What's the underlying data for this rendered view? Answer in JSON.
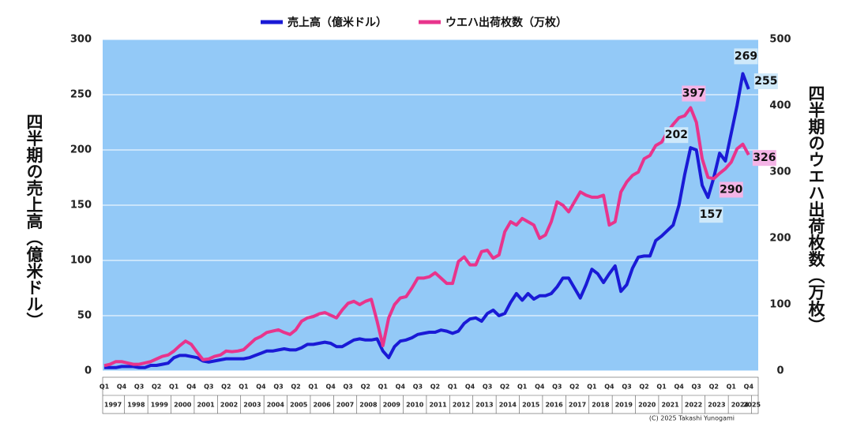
{
  "chart_data": {
    "type": "line",
    "categories": [
      "Q1",
      null,
      null,
      "Q4",
      null,
      null,
      "Q3",
      null,
      null,
      "Q2",
      null,
      null,
      "Q1",
      null,
      null,
      "Q4",
      null,
      null,
      "Q3",
      null,
      null,
      "Q2",
      null,
      null,
      "Q1",
      null,
      null,
      "Q4",
      null,
      null,
      "Q3",
      null,
      null,
      "Q2",
      null,
      null,
      "Q1",
      null,
      null,
      "Q4",
      null,
      null,
      "Q3",
      null,
      null,
      "Q2",
      null,
      null,
      "Q1",
      null,
      null,
      "Q4",
      null,
      null,
      "Q3",
      null,
      null,
      "Q2",
      null,
      null,
      "Q1",
      null,
      null,
      "Q4",
      null,
      null,
      "Q3",
      null,
      null,
      "Q2",
      null,
      null,
      "Q1",
      null,
      null,
      "Q4",
      null,
      null,
      "Q3",
      null,
      null,
      "Q2",
      null,
      null,
      "Q1",
      null,
      null,
      "Q4",
      null,
      null,
      "Q3",
      null,
      null,
      "Q2",
      null,
      null,
      "Q1",
      null,
      null,
      "Q4",
      null,
      null,
      "Q3",
      null,
      null,
      "Q2",
      null,
      null,
      "Q1",
      null,
      null,
      "Q4"
    ],
    "years": [
      "1997",
      "1998",
      "1999",
      "2000",
      "2001",
      "2002",
      "2003",
      "2004",
      "2005",
      "2006",
      "2007",
      "2008",
      "2009",
      "2010",
      "2011",
      "2012",
      "2013",
      "2014",
      "2015",
      "2016",
      "2017",
      "2018",
      "2019",
      "2020",
      "2021",
      "2022",
      "2023",
      "2024",
      "2025"
    ],
    "ylabel": "四半期の売上高（億米ドル）",
    "y2label": "四半期のウエハ出荷枚数（万枚）",
    "credit": "(C) 2025 Takashi Yunogami",
    "ylim": [
      0,
      300
    ],
    "yticks": [
      0,
      50,
      100,
      150,
      200,
      250,
      300
    ],
    "y2lim": [
      0,
      500
    ],
    "y2ticks": [
      0,
      100,
      200,
      300,
      400,
      500
    ],
    "grid": true,
    "legend": "top",
    "series": [
      {
        "name": "売上高（億米ドル）",
        "color": "#1a1ad6",
        "values": [
          3,
          3,
          3,
          4,
          4,
          4,
          3,
          3,
          5,
          5,
          6,
          7,
          12,
          14,
          14,
          13,
          12,
          9,
          8,
          9,
          10,
          11,
          11,
          11,
          11,
          12,
          14,
          16,
          18,
          18,
          19,
          20,
          19,
          19,
          21,
          24,
          24,
          25,
          26,
          25,
          22,
          22,
          25,
          28,
          29,
          28,
          28,
          29,
          18,
          12,
          22,
          27,
          28,
          30,
          33,
          34,
          35,
          35,
          37,
          36,
          34,
          36,
          43,
          47,
          48,
          45,
          52,
          55,
          50,
          52,
          62,
          70,
          64,
          70,
          65,
          68,
          68,
          70,
          76,
          84,
          84,
          75,
          66,
          78,
          92,
          88,
          80,
          88,
          95,
          72,
          78,
          93,
          103,
          104,
          104,
          118,
          122,
          127,
          132,
          150,
          178,
          202,
          200,
          168,
          157,
          175,
          197,
          190,
          215,
          240,
          269,
          255
        ],
        "value_labels": [
          null,
          null,
          null,
          null,
          null,
          null,
          null,
          null,
          null,
          null,
          null,
          null,
          null,
          null,
          null,
          null,
          null,
          null,
          null,
          null,
          null,
          null,
          null,
          null,
          null,
          null,
          null,
          null,
          null,
          null,
          null,
          null,
          null,
          null,
          null,
          null,
          null,
          null,
          null,
          null,
          null,
          null,
          null,
          null,
          null,
          null,
          null,
          null,
          null,
          null,
          null,
          null,
          null,
          null,
          null,
          null,
          null,
          null,
          null,
          null,
          null,
          null,
          null,
          null,
          null,
          null,
          null,
          null,
          null,
          null,
          null,
          null,
          null,
          null,
          null,
          null,
          null,
          null,
          null,
          null,
          null,
          null,
          null,
          null,
          null,
          null,
          null,
          null,
          null,
          null,
          null,
          null,
          null,
          null,
          null,
          null,
          null,
          null,
          null,
          null,
          null,
          "202",
          null,
          null,
          "157",
          null,
          null,
          null,
          null,
          null,
          "269",
          "255"
        ]
      },
      {
        "name": "ウエハ出荷枚数（万枚）",
        "color": "#e8348c",
        "axis": "y2",
        "values": [
          8,
          10,
          14,
          14,
          12,
          10,
          10,
          12,
          14,
          18,
          22,
          24,
          30,
          38,
          45,
          40,
          28,
          17,
          18,
          22,
          24,
          30,
          29,
          30,
          32,
          40,
          48,
          52,
          58,
          60,
          62,
          58,
          55,
          62,
          75,
          80,
          82,
          86,
          88,
          84,
          80,
          92,
          102,
          105,
          100,
          105,
          108,
          75,
          38,
          80,
          100,
          110,
          112,
          125,
          140,
          140,
          142,
          148,
          140,
          132,
          132,
          165,
          172,
          160,
          160,
          180,
          182,
          170,
          175,
          210,
          225,
          220,
          230,
          225,
          220,
          200,
          205,
          225,
          255,
          250,
          240,
          255,
          270,
          265,
          262,
          262,
          265,
          220,
          225,
          270,
          285,
          295,
          300,
          320,
          325,
          340,
          345,
          360,
          372,
          382,
          385,
          397,
          375,
          320,
          292,
          290,
          298,
          305,
          315,
          335,
          342,
          326
        ],
        "value_labels": [
          null,
          null,
          null,
          null,
          null,
          null,
          null,
          null,
          null,
          null,
          null,
          null,
          null,
          null,
          null,
          null,
          null,
          null,
          null,
          null,
          null,
          null,
          null,
          null,
          null,
          null,
          null,
          null,
          null,
          null,
          null,
          null,
          null,
          null,
          null,
          null,
          null,
          null,
          null,
          null,
          null,
          null,
          null,
          null,
          null,
          null,
          null,
          null,
          null,
          null,
          null,
          null,
          null,
          null,
          null,
          null,
          null,
          null,
          null,
          null,
          null,
          null,
          null,
          null,
          null,
          null,
          null,
          null,
          null,
          null,
          null,
          null,
          null,
          null,
          null,
          null,
          null,
          null,
          null,
          null,
          null,
          null,
          null,
          null,
          null,
          null,
          null,
          null,
          null,
          null,
          null,
          null,
          null,
          null,
          null,
          null,
          null,
          null,
          null,
          null,
          null,
          "397",
          null,
          null,
          null,
          "290",
          null,
          null,
          null,
          null,
          null,
          "326"
        ]
      }
    ]
  }
}
